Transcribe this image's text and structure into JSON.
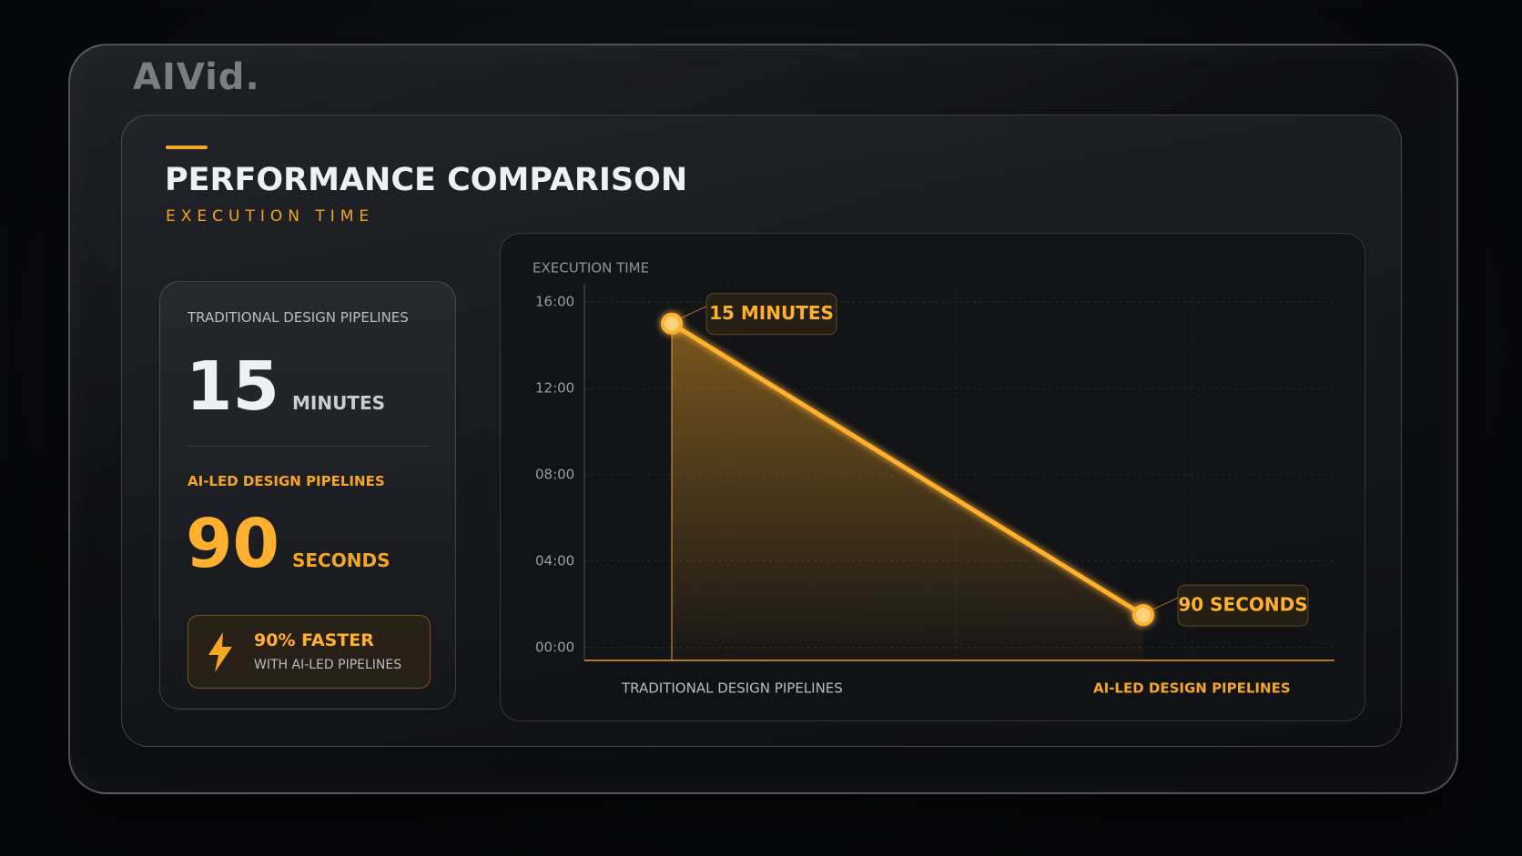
{
  "header": {
    "logo": "AIVid.",
    "title": "PERFORMANCE COMPARISON",
    "subtitle": "EXECUTION TIME"
  },
  "summary": {
    "traditional_label": "TRADITIONAL DESIGN PIPELINES",
    "traditional_value": "15",
    "traditional_unit": "MINUTES",
    "ai_label": "AI-LED DESIGN PIPELINES",
    "ai_value": "90",
    "ai_unit": "SECONDS",
    "badge_title": "90% FASTER",
    "badge_text": "WITH AI-LED PIPELINES"
  },
  "chart_data": {
    "type": "line",
    "title": "EXECUTION TIME",
    "categories": [
      "TRADITIONAL DESIGN PIPELINES",
      "AI-LED DESIGN PIPELINES"
    ],
    "category_colors": [
      "#b9bcc2",
      "#f5a623"
    ],
    "values": [
      15,
      1.5
    ],
    "value_labels": [
      "15 MINUTES",
      "90 SECONDS"
    ],
    "color": "#ffb02e",
    "ylim": [
      -0.6,
      16
    ],
    "yticks": [
      {
        "value": 16,
        "label": "16:00"
      },
      {
        "value": 12,
        "label": "12:00"
      },
      {
        "value": 8,
        "label": "08:00"
      },
      {
        "value": 4,
        "label": "04:00"
      },
      {
        "value": 0,
        "label": "00:00"
      }
    ],
    "grid": true
  }
}
